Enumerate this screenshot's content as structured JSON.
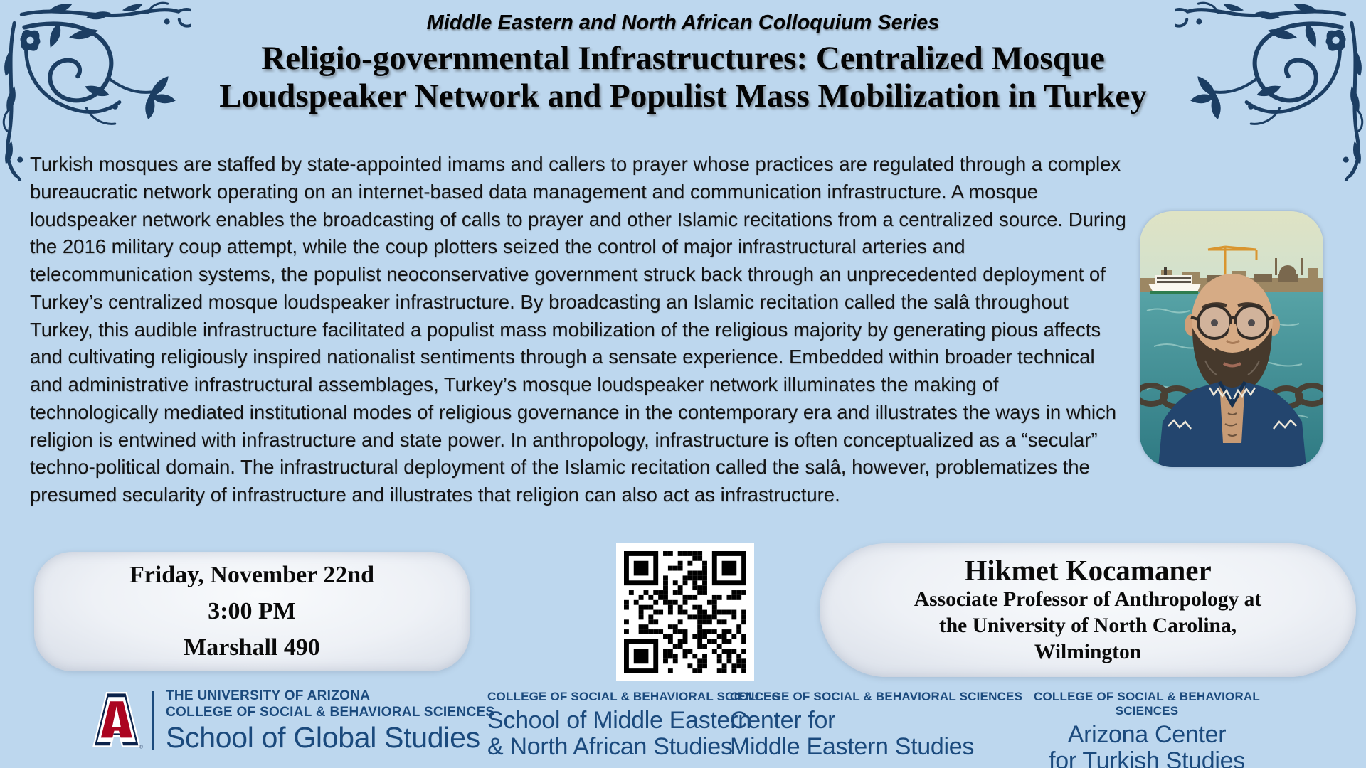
{
  "header": {
    "series": "Middle Eastern and North African Colloquium Series",
    "title_line1": "Religio-governmental Infrastructures: Centralized Mosque",
    "title_line2": "Loudspeaker Network and Populist Mass Mobilization in Turkey"
  },
  "abstract": {
    "text": "Turkish mosques are staffed by state-appointed imams and callers to prayer whose practices are regulated through a complex bureaucratic network operating on an internet-based data management and communication infrastructure. A mosque loudspeaker network enables the broadcasting of calls to prayer and other Islamic recitations from a centralized source. During the 2016 military coup attempt, while the coup plotters seized the control of major infrastructural arteries and telecommunication systems, the populist neoconservative government struck back through an unprecedented deployment of Turkey’s centralized mosque loudspeaker infrastructure. By broadcasting an Islamic recitation called the salâ throughout Turkey, this audible infrastructure facilitated a populist mass mobilization of the religious majority by generating pious affects and cultivating religiously inspired nationalist sentiments through a sensate experience. Embedded within broader technical and administrative infrastructural assemblages, Turkey’s mosque loudspeaker network illuminates the making of technologically mediated institutional modes of religious governance in the contemporary era and illustrates the ways in which religion is entwined with infrastructure and state power. In anthropology, infrastructure is often conceptualized as a “secular” techno-political domain. The infrastructural deployment of the Islamic recitation called the salâ, however, problematizes the presumed secularity of infrastructure and illustrates that religion can also act as infrastructure."
  },
  "event": {
    "date": "Friday, November 22nd",
    "time": "3:00 PM",
    "location": "Marshall 490"
  },
  "speaker": {
    "name": "Hikmet Kocamaner",
    "affiliation_line1": "Associate Professor of Anthropology at",
    "affiliation_line2": "the University of North Carolina,",
    "affiliation_line3": "Wilmington"
  },
  "footer": {
    "ua": {
      "university": "THE UNIVERSITY OF ARIZONA",
      "college": "COLLEGE OF SOCIAL & BEHAVIORAL SCIENCES",
      "school": "School of Global Studies",
      "trademark": "®"
    },
    "units": [
      {
        "college": "COLLEGE OF SOCIAL & BEHAVIORAL SCIENCES",
        "line1": "School of Middle Eastern",
        "line2": "& North African Studies"
      },
      {
        "college": "COLLEGE OF SOCIAL & BEHAVIORAL SCIENCES",
        "line1": "Center for",
        "line2": "Middle Eastern Studies"
      },
      {
        "college": "COLLEGE OF SOCIAL & BEHAVIORAL SCIENCES",
        "line1": "Arizona Center",
        "line2": "for Turkish Studies"
      }
    ]
  },
  "icons": {
    "corner_ornament": "floral-flourish",
    "qr": "qr-code",
    "photo": "speaker-portrait",
    "ua_logo": "arizona-block-a"
  },
  "colors": {
    "background": "#BDD7EE",
    "ornament_navy": "#1C3E63",
    "footer_navy": "#1B4A7D",
    "ua_navy": "#0C234B",
    "ua_red": "#AB0520",
    "text_black": "#141414",
    "box_silver": "#EDF0F5",
    "water_teal": "#2F7A83"
  }
}
